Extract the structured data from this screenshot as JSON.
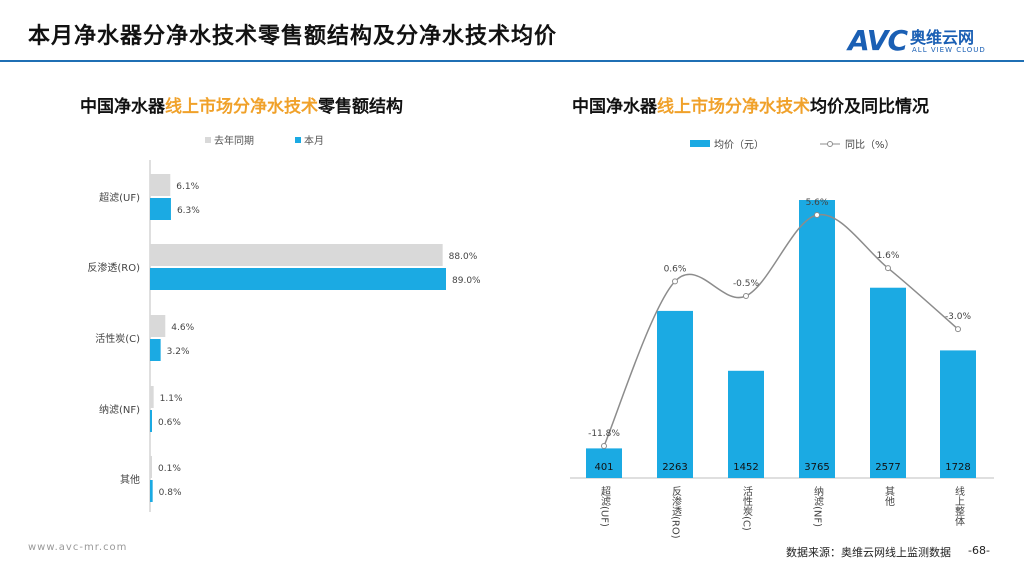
{
  "header": {
    "title": "本月净水器分净水技术零售额结构及分净水技术均价"
  },
  "logo": {
    "mark": "AVC",
    "cn": "奥维云网",
    "en": "ALL VIEW CLOUD"
  },
  "left_panel": {
    "title_pre": "中国净水器",
    "title_hl": "线上市场分净水技术",
    "title_post": "零售额结构"
  },
  "right_panel": {
    "title_pre": "中国净水器",
    "title_hl": "线上市场分净水技术",
    "title_post": "均价及同比情况"
  },
  "footer": {
    "url": "www.avc-mr.com",
    "source": "数据来源：奥维云网线上监测数据",
    "page": "-68-"
  },
  "colors": {
    "bar_current": "#1baae3",
    "bar_prior": "#d9d9d9",
    "line": "#8c8c8c",
    "accent": "#f0a12a",
    "rule": "#1f6fb4"
  },
  "chart_data": [
    {
      "type": "bar",
      "orientation": "horizontal",
      "categories": [
        "超滤(UF)",
        "反渗透(RO)",
        "活性炭(C)",
        "纳滤(NF)",
        "其他"
      ],
      "series": [
        {
          "name": "去年同期",
          "values": [
            6.1,
            88.0,
            4.6,
            1.1,
            0.1
          ],
          "labels": [
            "6.1%",
            "88.0%",
            "4.6%",
            "1.1%",
            "0.1%"
          ]
        },
        {
          "name": "本月",
          "values": [
            6.3,
            89.0,
            3.2,
            0.6,
            0.8
          ],
          "labels": [
            "6.3%",
            "89.0%",
            "3.2%",
            "0.6%",
            "0.8%"
          ]
        }
      ],
      "xlim": [
        0,
        100
      ],
      "legend": "top"
    },
    {
      "type": "bar",
      "categories": [
        "超滤(UF)",
        "反渗透(RO)",
        "活性炭(C)",
        "纳滤(NF)",
        "其他",
        "线上整体"
      ],
      "series": [
        {
          "name": "均价（元）",
          "type": "bar",
          "values": [
            401,
            2263,
            1452,
            3765,
            2577,
            1728
          ],
          "labels": [
            "401",
            "2263",
            "1452",
            "3765",
            "2577",
            "1728"
          ]
        },
        {
          "name": "同比（%）",
          "type": "line",
          "values": [
            -11.8,
            0.6,
            -0.5,
            5.6,
            1.6,
            -3.0
          ],
          "labels": [
            "-11.8%",
            "0.6%",
            "-0.5%",
            "5.6%",
            "1.6%",
            "-3.0%"
          ]
        }
      ],
      "ylim": [
        0,
        4000
      ],
      "y2lim": [
        -14,
        8
      ],
      "legend": "top"
    }
  ]
}
